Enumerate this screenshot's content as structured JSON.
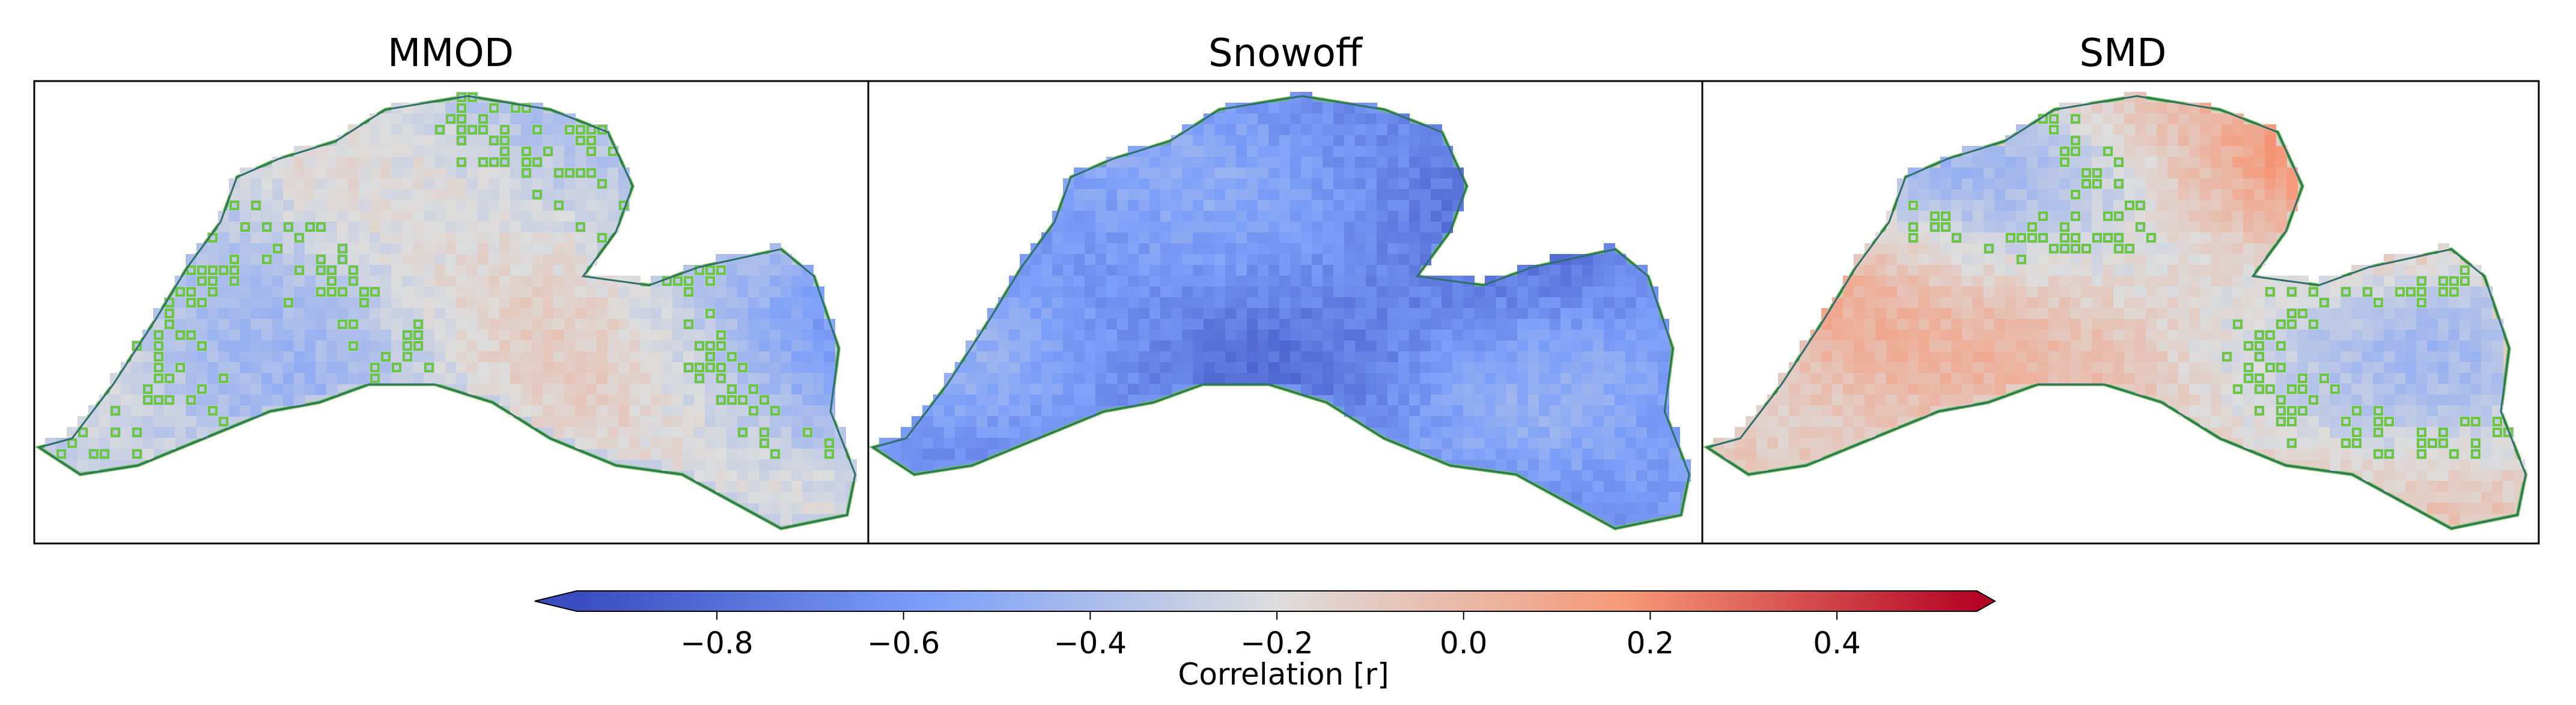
{
  "chart_data": {
    "type": "heatmap",
    "panels": [
      {
        "title": "MMOD",
        "mean_r": -0.3,
        "spread": 0.28,
        "significant_threshold": -0.35,
        "seed": 11
      },
      {
        "title": "Snowoff",
        "mean_r": -0.62,
        "spread": 0.22,
        "significant_threshold": -0.4,
        "seed": 23
      },
      {
        "title": "SMD",
        "mean_r": -0.12,
        "spread": 0.3,
        "significant_threshold": -0.3,
        "seed": 37
      }
    ],
    "colorbar": {
      "label": "Correlation [r]",
      "vmin": -0.95,
      "vmax": 0.55,
      "ticks": [
        -0.8,
        -0.6,
        -0.4,
        -0.2,
        0.0,
        0.2,
        0.4
      ],
      "tick_labels": [
        "−0.8",
        "−0.6",
        "−0.4",
        "−0.2",
        "0.0",
        "0.2",
        "0.4"
      ],
      "extend": "both",
      "colormap": "coolwarm"
    },
    "contour_color": "#6cc644",
    "contour_edge_color": "#2e6f6a"
  }
}
